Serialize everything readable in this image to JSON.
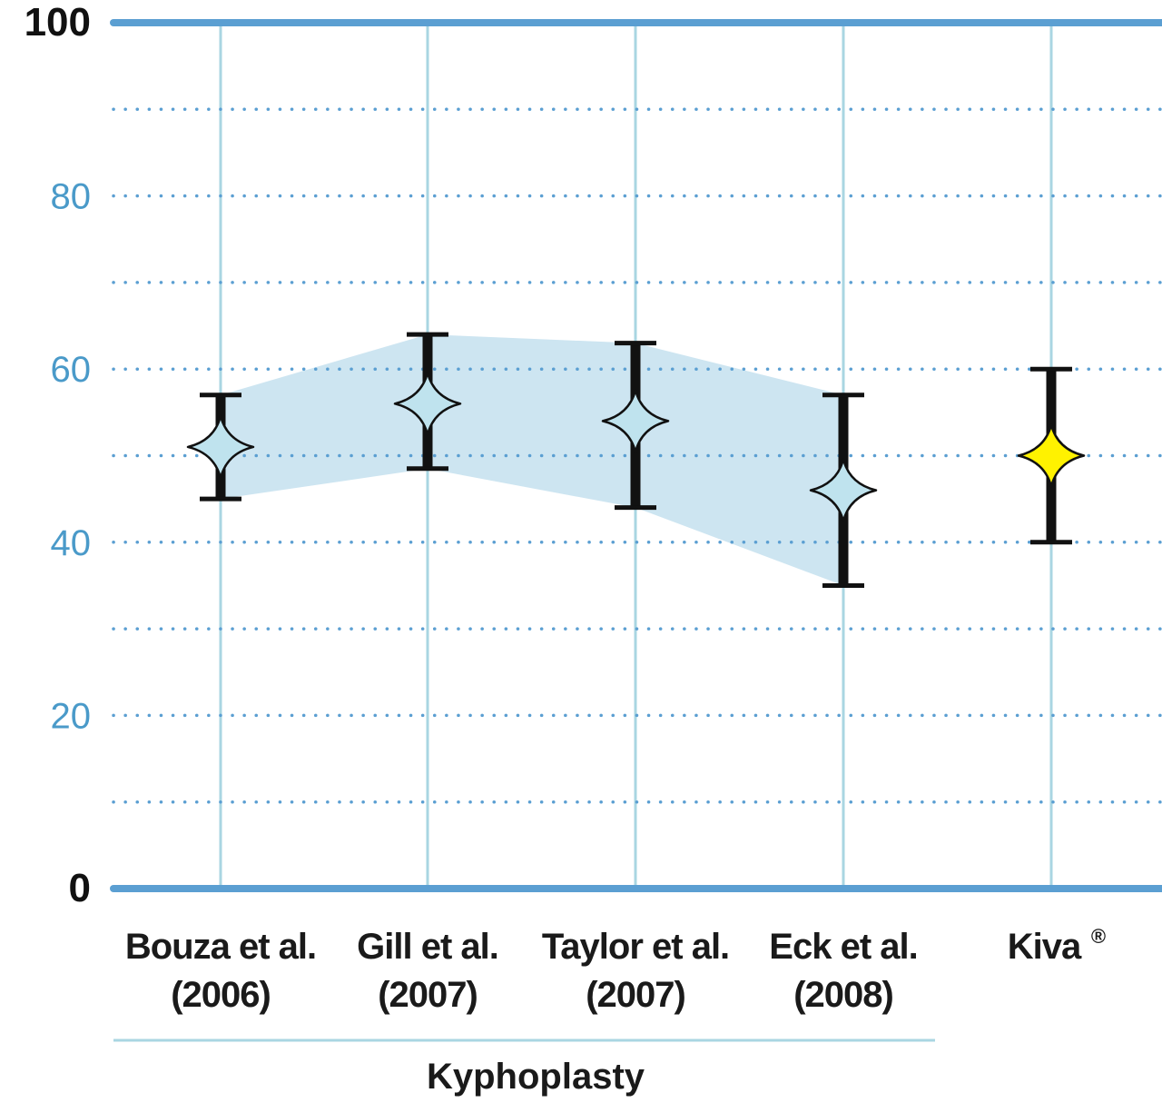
{
  "chart_data": {
    "type": "scatter",
    "ylim": [
      0,
      100
    ],
    "y_ticks": [
      {
        "value": 0,
        "label": "0",
        "emphasis": true
      },
      {
        "value": 20,
        "label": "20",
        "emphasis": false
      },
      {
        "value": 40,
        "label": "40",
        "emphasis": false
      },
      {
        "value": 60,
        "label": "60",
        "emphasis": false
      },
      {
        "value": 80,
        "label": "80",
        "emphasis": false
      },
      {
        "value": 100,
        "label": "100",
        "emphasis": true
      }
    ],
    "minor_gridlines": [
      10,
      30,
      50,
      70,
      90
    ],
    "grid": true,
    "points": [
      {
        "line1": "Bouza et al.",
        "line2": "(2006)",
        "mean": 51,
        "low": 45,
        "high": 57,
        "color": "#bfe3ee"
      },
      {
        "line1": "Gill et al.",
        "line2": "(2007)",
        "mean": 56,
        "low": 48.5,
        "high": 64,
        "color": "#bfe3ee"
      },
      {
        "line1": "Taylor et al.",
        "line2": "(2007)",
        "mean": 54,
        "low": 44,
        "high": 63,
        "color": "#bfe3ee"
      },
      {
        "line1": "Eck et al.",
        "line2": "(2008)",
        "mean": 46,
        "low": 35,
        "high": 57,
        "color": "#bfe3ee"
      },
      {
        "line1": "Kiva",
        "line2": "",
        "mean": 50,
        "low": 40,
        "high": 60,
        "color": "#fff200",
        "superscript": "®"
      }
    ],
    "band": {
      "series_indices": [
        0,
        1,
        2,
        3
      ],
      "upper": [
        57,
        64,
        63,
        57
      ],
      "lower": [
        45,
        48.5,
        44,
        35
      ],
      "color": "#cde5f1"
    },
    "group_label": "Kyphoplasty",
    "colors": {
      "axis_major": "#5b9fd2",
      "grid_vertical": "#a9d6e2",
      "grid_dotted": "#5b9fd2",
      "error_bar": "#111111",
      "group_rule": "#a9d6e2"
    }
  }
}
